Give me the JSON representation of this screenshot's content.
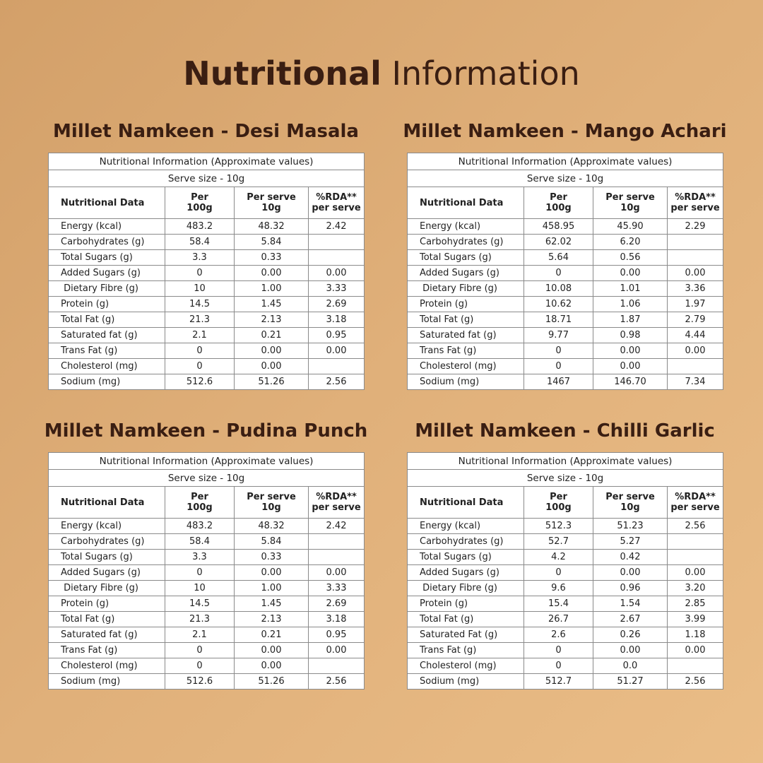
{
  "title": {
    "bold": "Nutritional",
    "light": "Information"
  },
  "panels": [
    {
      "heading": "Millet Namkeen - Desi Masala",
      "caption": "Nutritional Information (Approximate values)",
      "serve": "Serve size - 10g",
      "columns": [
        "Nutritional Data",
        "Per\n100g",
        "Per serve\n10g",
        "%RDA**\nper serve"
      ],
      "rows": [
        [
          "Energy (kcal)",
          "483.2",
          "48.32",
          "2.42"
        ],
        [
          "Carbohydrates (g)",
          "58.4",
          "5.84",
          null
        ],
        [
          "Total Sugars (g)",
          "3.3",
          "0.33",
          null
        ],
        [
          "Added Sugars (g)",
          "0",
          "0.00",
          "0.00"
        ],
        [
          " Dietary Fibre (g)",
          "10",
          "1.00",
          "3.33"
        ],
        [
          "Protein (g)",
          "14.5",
          "1.45",
          "2.69"
        ],
        [
          "Total Fat (g)",
          "21.3",
          "2.13",
          "3.18"
        ],
        [
          "Saturated fat (g)",
          "2.1",
          "0.21",
          "0.95"
        ],
        [
          "Trans Fat (g)",
          "0",
          "0.00",
          "0.00"
        ],
        [
          "Cholesterol (mg)",
          "0",
          "0.00",
          null
        ],
        [
          "Sodium (mg)",
          "512.6",
          "51.26",
          "2.56"
        ]
      ]
    },
    {
      "heading": "Millet Namkeen - Mango Achari",
      "caption": "Nutritional Information (Approximate values)",
      "serve": "Serve size - 10g",
      "columns": [
        "Nutritional Data",
        "Per\n100g",
        "Per serve\n10g",
        "%RDA**\nper serve"
      ],
      "rows": [
        [
          "Energy (kcal)",
          "458.95",
          "45.90",
          "2.29"
        ],
        [
          "Carbohydrates (g)",
          "62.02",
          "6.20",
          null
        ],
        [
          "Total Sugars (g)",
          "5.64",
          "0.56",
          null
        ],
        [
          "Added Sugars (g)",
          "0",
          "0.00",
          "0.00"
        ],
        [
          " Dietary Fibre (g)",
          "10.08",
          "1.01",
          "3.36"
        ],
        [
          "Protein (g)",
          "10.62",
          "1.06",
          "1.97"
        ],
        [
          "Total Fat (g)",
          "18.71",
          "1.87",
          "2.79"
        ],
        [
          "Saturated fat (g)",
          "9.77",
          "0.98",
          "4.44"
        ],
        [
          "Trans Fat (g)",
          "0",
          "0.00",
          "0.00"
        ],
        [
          "Cholesterol (mg)",
          "0",
          "0.00",
          null
        ],
        [
          "Sodium (mg)",
          "1467",
          "146.70",
          "7.34"
        ]
      ]
    },
    {
      "heading": "Millet Namkeen - Pudina Punch",
      "caption": "Nutritional Information (Approximate values)",
      "serve": "Serve size - 10g",
      "columns": [
        "Nutritional Data",
        "Per\n100g",
        "Per serve\n10g",
        "%RDA**\nper serve"
      ],
      "rows": [
        [
          "Energy (kcal)",
          "483.2",
          "48.32",
          "2.42"
        ],
        [
          "Carbohydrates (g)",
          "58.4",
          "5.84",
          null
        ],
        [
          "Total Sugars (g)",
          "3.3",
          "0.33",
          null
        ],
        [
          "Added Sugars (g)",
          "0",
          "0.00",
          "0.00"
        ],
        [
          " Dietary Fibre (g)",
          "10",
          "1.00",
          "3.33"
        ],
        [
          "Protein (g)",
          "14.5",
          "1.45",
          "2.69"
        ],
        [
          "Total Fat (g)",
          "21.3",
          "2.13",
          "3.18"
        ],
        [
          "Saturated fat (g)",
          "2.1",
          "0.21",
          "0.95"
        ],
        [
          "Trans Fat (g)",
          "0",
          "0.00",
          "0.00"
        ],
        [
          "Cholesterol (mg)",
          "0",
          "0.00",
          null
        ],
        [
          "Sodium (mg)",
          "512.6",
          "51.26",
          "2.56"
        ]
      ]
    },
    {
      "heading": "Millet Namkeen - Chilli Garlic",
      "caption": "Nutritional Information (Approximate values)",
      "serve": "Serve size - 10g",
      "columns": [
        "Nutritional Data",
        "Per\n100g",
        "Per serve\n10g",
        "%RDA**\nper serve"
      ],
      "rows": [
        [
          "Energy (kcal)",
          "512.3",
          "51.23",
          "2.56"
        ],
        [
          "Carbohydrates (g)",
          "52.7",
          "5.27",
          null
        ],
        [
          "Total Sugars (g)",
          "4.2",
          "0.42",
          null
        ],
        [
          "Added Sugars (g)",
          "0",
          "0.00",
          "0.00"
        ],
        [
          " Dietary Fibre (g)",
          "9.6",
          "0.96",
          "3.20"
        ],
        [
          "Protein (g)",
          "15.4",
          "1.54",
          "2.85"
        ],
        [
          "Total Fat (g)",
          "26.7",
          "2.67",
          "3.99"
        ],
        [
          "Saturated Fat (g)",
          "2.6",
          "0.26",
          "1.18"
        ],
        [
          "Trans Fat (g)",
          "0",
          "0.00",
          "0.00"
        ],
        [
          "Cholesterol (mg)",
          "0",
          "0.0",
          null
        ],
        [
          "Sodium (mg)",
          "512.7",
          "51.27",
          "2.56"
        ]
      ]
    }
  ]
}
